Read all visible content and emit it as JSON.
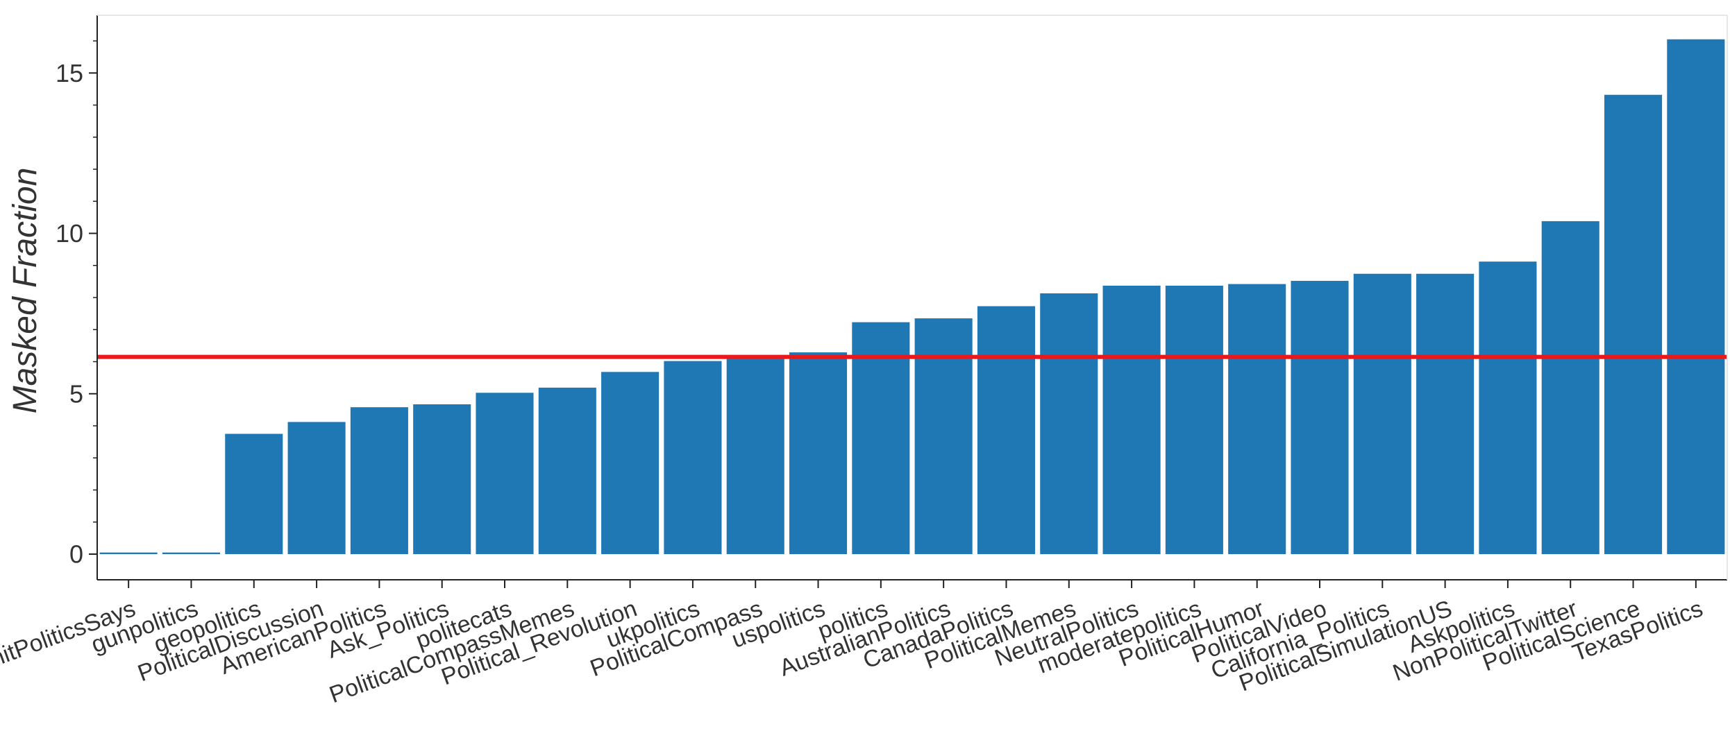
{
  "chart_data": {
    "type": "bar",
    "title": "",
    "xlabel": "",
    "ylabel": "Masked Fraction",
    "ylim": [
      -0.8,
      16.8
    ],
    "yticks": [
      0,
      5,
      10,
      15
    ],
    "grid": false,
    "legend": "none",
    "categories": [
      "ShitPoliticsSays",
      "gunpolitics",
      "geopolitics",
      "PoliticalDiscussion",
      "AmericanPolitics",
      "Ask_Politics",
      "politecats",
      "PoliticalCompassMemes",
      "Political_Revolution",
      "ukpolitics",
      "PoliticalCompass",
      "uspolitics",
      "politics",
      "AustralianPolitics",
      "CanadaPolitics",
      "PoliticalMemes",
      "NeutralPolitics",
      "moderatepolitics",
      "PoliticalHumor",
      "PoliticalVideo",
      "California_Politics",
      "PoliticalSimulationUS",
      "Askpolitics",
      "NonPoliticalTwitter",
      "PoliticalScience",
      "TexasPolitics"
    ],
    "values": [
      0.05,
      0.05,
      3.75,
      4.12,
      4.58,
      4.67,
      5.03,
      5.19,
      5.68,
      6.02,
      6.15,
      6.29,
      7.23,
      7.35,
      7.73,
      8.13,
      8.37,
      8.37,
      8.42,
      8.52,
      8.74,
      8.74,
      9.12,
      10.38,
      14.32,
      16.05
    ],
    "reference_line": {
      "value": 6.15
    },
    "colors": {
      "bar": "#1f77b4",
      "reference_line": "#e8181c",
      "axis": "#222222"
    }
  }
}
